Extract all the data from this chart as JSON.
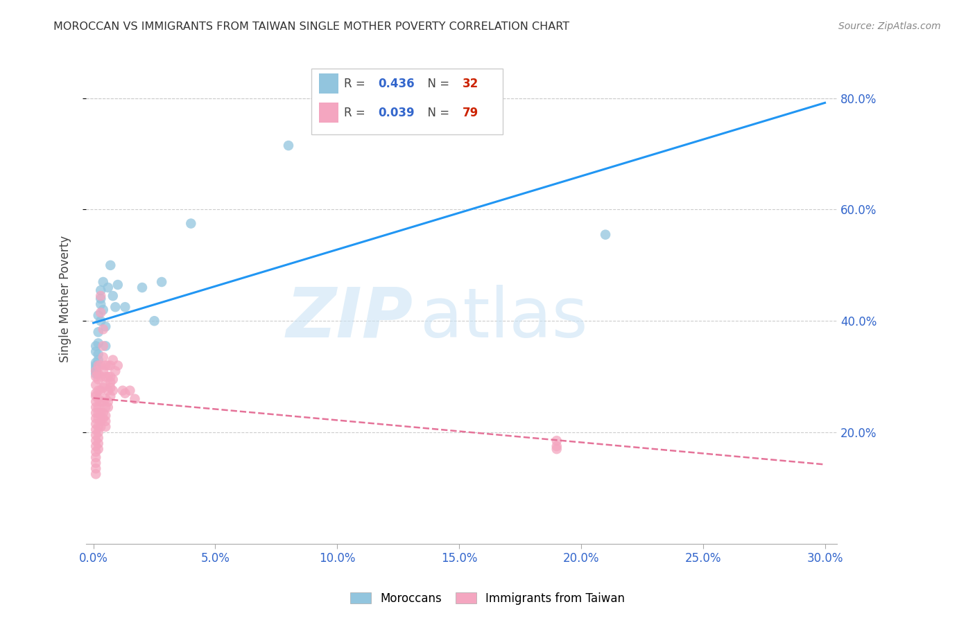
{
  "title": "MOROCCAN VS IMMIGRANTS FROM TAIWAN SINGLE MOTHER POVERTY CORRELATION CHART",
  "source": "Source: ZipAtlas.com",
  "xlabel_vals": [
    0.0,
    0.05,
    0.1,
    0.15,
    0.2,
    0.25,
    0.3
  ],
  "ylabel_vals": [
    0.2,
    0.4,
    0.6,
    0.8
  ],
  "xlim": [
    -0.003,
    0.305
  ],
  "ylim": [
    0.0,
    0.88
  ],
  "moroccan_color": "#92c5de",
  "taiwan_color": "#f4a6c0",
  "trend_moroccan_color": "#2196F3",
  "trend_taiwan_color": "#e57399",
  "moroccan_r": "0.436",
  "moroccan_n": "32",
  "taiwan_r": "0.039",
  "taiwan_n": "79",
  "moroccan_points": [
    [
      0.001,
      0.325
    ],
    [
      0.001,
      0.345
    ],
    [
      0.001,
      0.355
    ],
    [
      0.001,
      0.31
    ],
    [
      0.001,
      0.32
    ],
    [
      0.001,
      0.305
    ],
    [
      0.001,
      0.315
    ],
    [
      0.002,
      0.33
    ],
    [
      0.002,
      0.36
    ],
    [
      0.002,
      0.38
    ],
    [
      0.002,
      0.34
    ],
    [
      0.002,
      0.41
    ],
    [
      0.003,
      0.43
    ],
    [
      0.003,
      0.455
    ],
    [
      0.003,
      0.44
    ],
    [
      0.003,
      0.4
    ],
    [
      0.004,
      0.47
    ],
    [
      0.004,
      0.42
    ],
    [
      0.005,
      0.39
    ],
    [
      0.005,
      0.355
    ],
    [
      0.006,
      0.46
    ],
    [
      0.007,
      0.5
    ],
    [
      0.008,
      0.445
    ],
    [
      0.009,
      0.425
    ],
    [
      0.01,
      0.465
    ],
    [
      0.013,
      0.425
    ],
    [
      0.02,
      0.46
    ],
    [
      0.025,
      0.4
    ],
    [
      0.028,
      0.47
    ],
    [
      0.04,
      0.575
    ],
    [
      0.08,
      0.715
    ],
    [
      0.21,
      0.555
    ]
  ],
  "taiwan_points": [
    [
      0.001,
      0.31
    ],
    [
      0.001,
      0.3
    ],
    [
      0.001,
      0.285
    ],
    [
      0.001,
      0.27
    ],
    [
      0.001,
      0.265
    ],
    [
      0.001,
      0.255
    ],
    [
      0.001,
      0.245
    ],
    [
      0.001,
      0.235
    ],
    [
      0.001,
      0.225
    ],
    [
      0.001,
      0.215
    ],
    [
      0.001,
      0.205
    ],
    [
      0.001,
      0.195
    ],
    [
      0.001,
      0.185
    ],
    [
      0.001,
      0.175
    ],
    [
      0.001,
      0.165
    ],
    [
      0.001,
      0.155
    ],
    [
      0.001,
      0.145
    ],
    [
      0.001,
      0.135
    ],
    [
      0.001,
      0.125
    ],
    [
      0.002,
      0.32
    ],
    [
      0.002,
      0.305
    ],
    [
      0.002,
      0.295
    ],
    [
      0.002,
      0.275
    ],
    [
      0.002,
      0.26
    ],
    [
      0.002,
      0.245
    ],
    [
      0.002,
      0.235
    ],
    [
      0.002,
      0.225
    ],
    [
      0.002,
      0.21
    ],
    [
      0.002,
      0.2
    ],
    [
      0.002,
      0.19
    ],
    [
      0.002,
      0.18
    ],
    [
      0.002,
      0.17
    ],
    [
      0.003,
      0.445
    ],
    [
      0.003,
      0.415
    ],
    [
      0.003,
      0.32
    ],
    [
      0.003,
      0.3
    ],
    [
      0.003,
      0.275
    ],
    [
      0.003,
      0.255
    ],
    [
      0.003,
      0.235
    ],
    [
      0.003,
      0.22
    ],
    [
      0.003,
      0.21
    ],
    [
      0.004,
      0.385
    ],
    [
      0.004,
      0.355
    ],
    [
      0.004,
      0.335
    ],
    [
      0.004,
      0.31
    ],
    [
      0.004,
      0.28
    ],
    [
      0.004,
      0.255
    ],
    [
      0.004,
      0.235
    ],
    [
      0.004,
      0.225
    ],
    [
      0.005,
      0.32
    ],
    [
      0.005,
      0.3
    ],
    [
      0.005,
      0.285
    ],
    [
      0.005,
      0.26
    ],
    [
      0.005,
      0.245
    ],
    [
      0.005,
      0.23
    ],
    [
      0.005,
      0.22
    ],
    [
      0.005,
      0.21
    ],
    [
      0.006,
      0.32
    ],
    [
      0.006,
      0.3
    ],
    [
      0.006,
      0.275
    ],
    [
      0.006,
      0.255
    ],
    [
      0.006,
      0.245
    ],
    [
      0.007,
      0.32
    ],
    [
      0.007,
      0.3
    ],
    [
      0.007,
      0.29
    ],
    [
      0.007,
      0.28
    ],
    [
      0.007,
      0.265
    ],
    [
      0.008,
      0.33
    ],
    [
      0.008,
      0.295
    ],
    [
      0.008,
      0.275
    ],
    [
      0.009,
      0.31
    ],
    [
      0.01,
      0.32
    ],
    [
      0.012,
      0.275
    ],
    [
      0.013,
      0.27
    ],
    [
      0.015,
      0.275
    ],
    [
      0.017,
      0.26
    ],
    [
      0.19,
      0.175
    ],
    [
      0.19,
      0.185
    ],
    [
      0.19,
      0.17
    ]
  ],
  "moroccan_trend_x": [
    0.0,
    0.3
  ],
  "taiwan_trend_x": [
    0.0,
    0.3
  ]
}
